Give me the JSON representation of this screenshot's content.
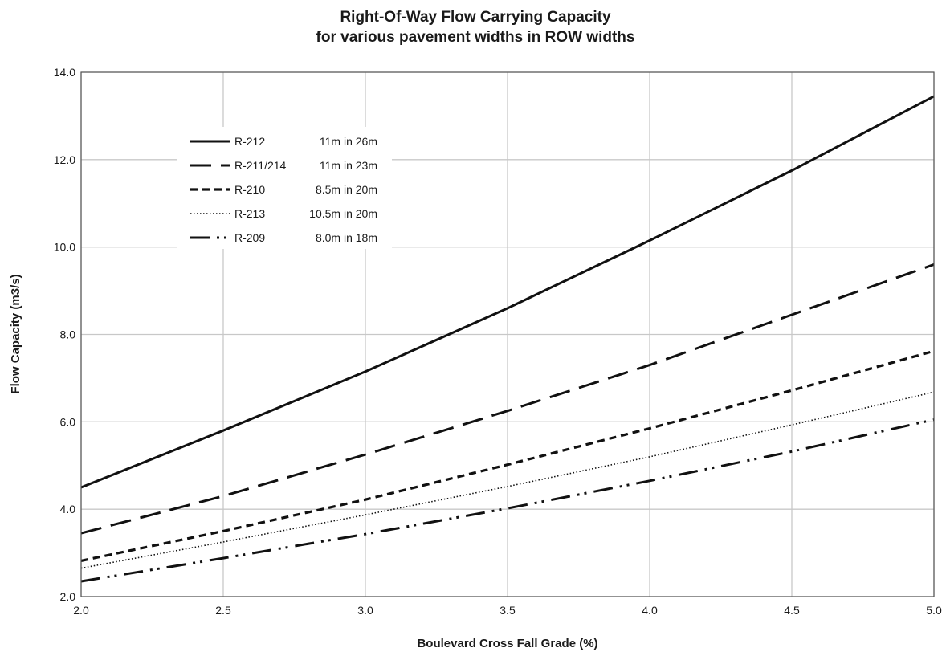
{
  "chart_data": {
    "type": "line",
    "title": "Right-Of-Way  Flow Carrying Capacity",
    "subtitle": "for various pavement widths in ROW widths",
    "xlabel": "Boulevard Cross  Fall Grade (%)",
    "ylabel": "Flow Capacity (m3/s)",
    "xlim": [
      2.0,
      5.0
    ],
    "ylim": [
      2.0,
      14.0
    ],
    "x_ticks": [
      "2.0",
      "2.5",
      "3.0",
      "3.5",
      "4.0",
      "4.5",
      "5.0"
    ],
    "y_ticks": [
      "2.0",
      "4.0",
      "6.0",
      "8.0",
      "10.0",
      "12.0",
      "14.0"
    ],
    "grid": true,
    "legend_position": "top-left",
    "series": [
      {
        "name": "R-212",
        "desc": "11m in 26m",
        "style": "solid",
        "points": [
          [
            2.0,
            4.5
          ],
          [
            2.5,
            5.8
          ],
          [
            3.0,
            7.15
          ],
          [
            3.5,
            8.6
          ],
          [
            4.0,
            10.15
          ],
          [
            4.5,
            11.75
          ],
          [
            5.0,
            13.45
          ]
        ]
      },
      {
        "name": "R-211/214",
        "desc": "11m in 23m",
        "style": "long-dash",
        "points": [
          [
            2.0,
            3.45
          ],
          [
            2.5,
            4.3
          ],
          [
            3.0,
            5.25
          ],
          [
            3.5,
            6.25
          ],
          [
            4.0,
            7.3
          ],
          [
            4.5,
            8.45
          ],
          [
            5.0,
            9.6
          ]
        ]
      },
      {
        "name": "R-210",
        "desc": "8.5m in 20m",
        "style": "short-dash",
        "points": [
          [
            2.0,
            2.82
          ],
          [
            2.5,
            3.5
          ],
          [
            3.0,
            4.22
          ],
          [
            3.5,
            5.02
          ],
          [
            4.0,
            5.85
          ],
          [
            4.5,
            6.72
          ],
          [
            5.0,
            7.62
          ]
        ]
      },
      {
        "name": "R-213",
        "desc": "10.5m in 20m",
        "style": "dotted",
        "points": [
          [
            2.0,
            2.65
          ],
          [
            2.5,
            3.25
          ],
          [
            3.0,
            3.87
          ],
          [
            3.5,
            4.52
          ],
          [
            4.0,
            5.2
          ],
          [
            4.5,
            5.93
          ],
          [
            5.0,
            6.68
          ]
        ]
      },
      {
        "name": "R-209",
        "desc": "8.0m in 18m",
        "style": "dash-dot-dot",
        "points": [
          [
            2.0,
            2.35
          ],
          [
            2.5,
            2.88
          ],
          [
            3.0,
            3.43
          ],
          [
            3.5,
            4.02
          ],
          [
            4.0,
            4.65
          ],
          [
            4.5,
            5.32
          ],
          [
            5.0,
            6.05
          ]
        ]
      }
    ]
  }
}
